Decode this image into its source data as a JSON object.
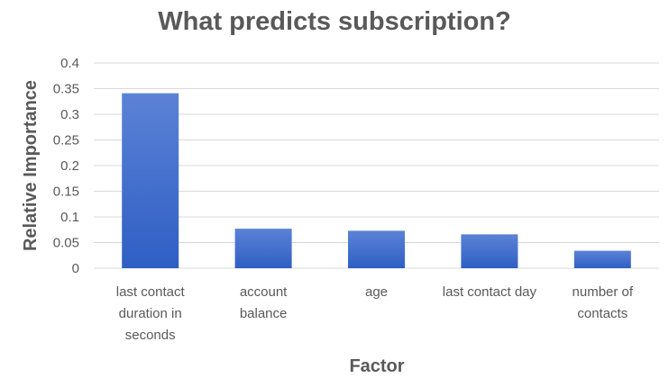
{
  "chart_data": {
    "type": "bar",
    "title": "What predicts subscription?",
    "xlabel": "Factor",
    "ylabel": "Relative Importance",
    "categories": [
      "last contact duration in seconds",
      "account balance",
      "age",
      "last contact day",
      "number of contacts"
    ],
    "category_lines": [
      [
        "last contact",
        "duration in",
        "seconds"
      ],
      [
        "account",
        "balance"
      ],
      [
        "age"
      ],
      [
        "last contact day"
      ],
      [
        "number of",
        "contacts"
      ]
    ],
    "values": [
      0.341,
      0.077,
      0.073,
      0.066,
      0.034
    ],
    "ylim": [
      0,
      0.4
    ],
    "yticks": [
      0,
      0.05,
      0.1,
      0.15,
      0.2,
      0.25,
      0.3,
      0.35,
      0.4
    ],
    "ytick_labels": [
      "0",
      "0.05",
      "0.1",
      "0.15",
      "0.2",
      "0.25",
      "0.3",
      "0.35",
      "0.4"
    ],
    "grid": true,
    "legend": "none",
    "bar_color_top": "#5b82d6",
    "bar_color_bottom": "#2f5fc4"
  }
}
